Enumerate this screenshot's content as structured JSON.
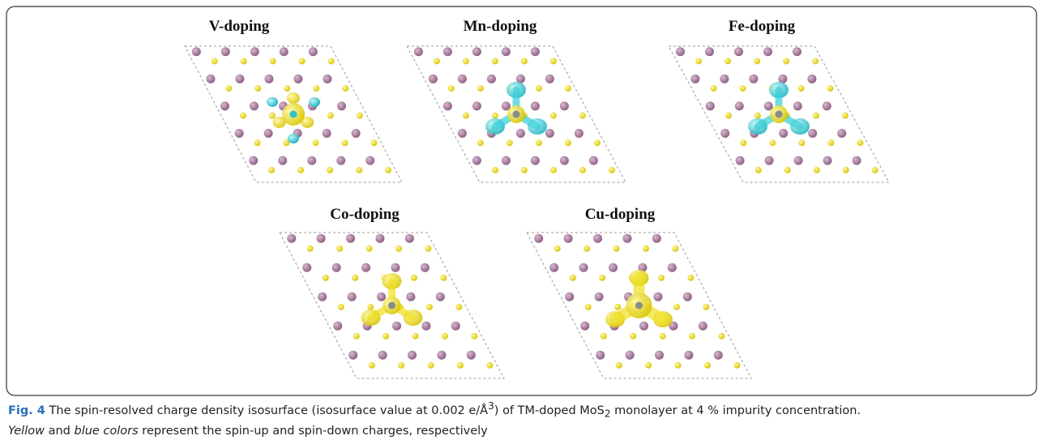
{
  "panels": [
    {
      "title": "V-doping"
    },
    {
      "title": "Mn-doping"
    },
    {
      "title": "Fe-doping"
    },
    {
      "title": "Co-doping"
    },
    {
      "title": "Cu-doping"
    }
  ],
  "caption": {
    "segments": [
      "Fig. 4",
      " The spin-resolved charge density isosurface (isosurface value at 0.002 e/Å",
      "3",
      ") of TM-doped MoS",
      "2",
      " monolayer at 4 % impurity concentration.",
      "Yellow",
      " and ",
      "blue colors",
      " represent the spin-up and spin-down charges, respectively"
    ]
  }
}
